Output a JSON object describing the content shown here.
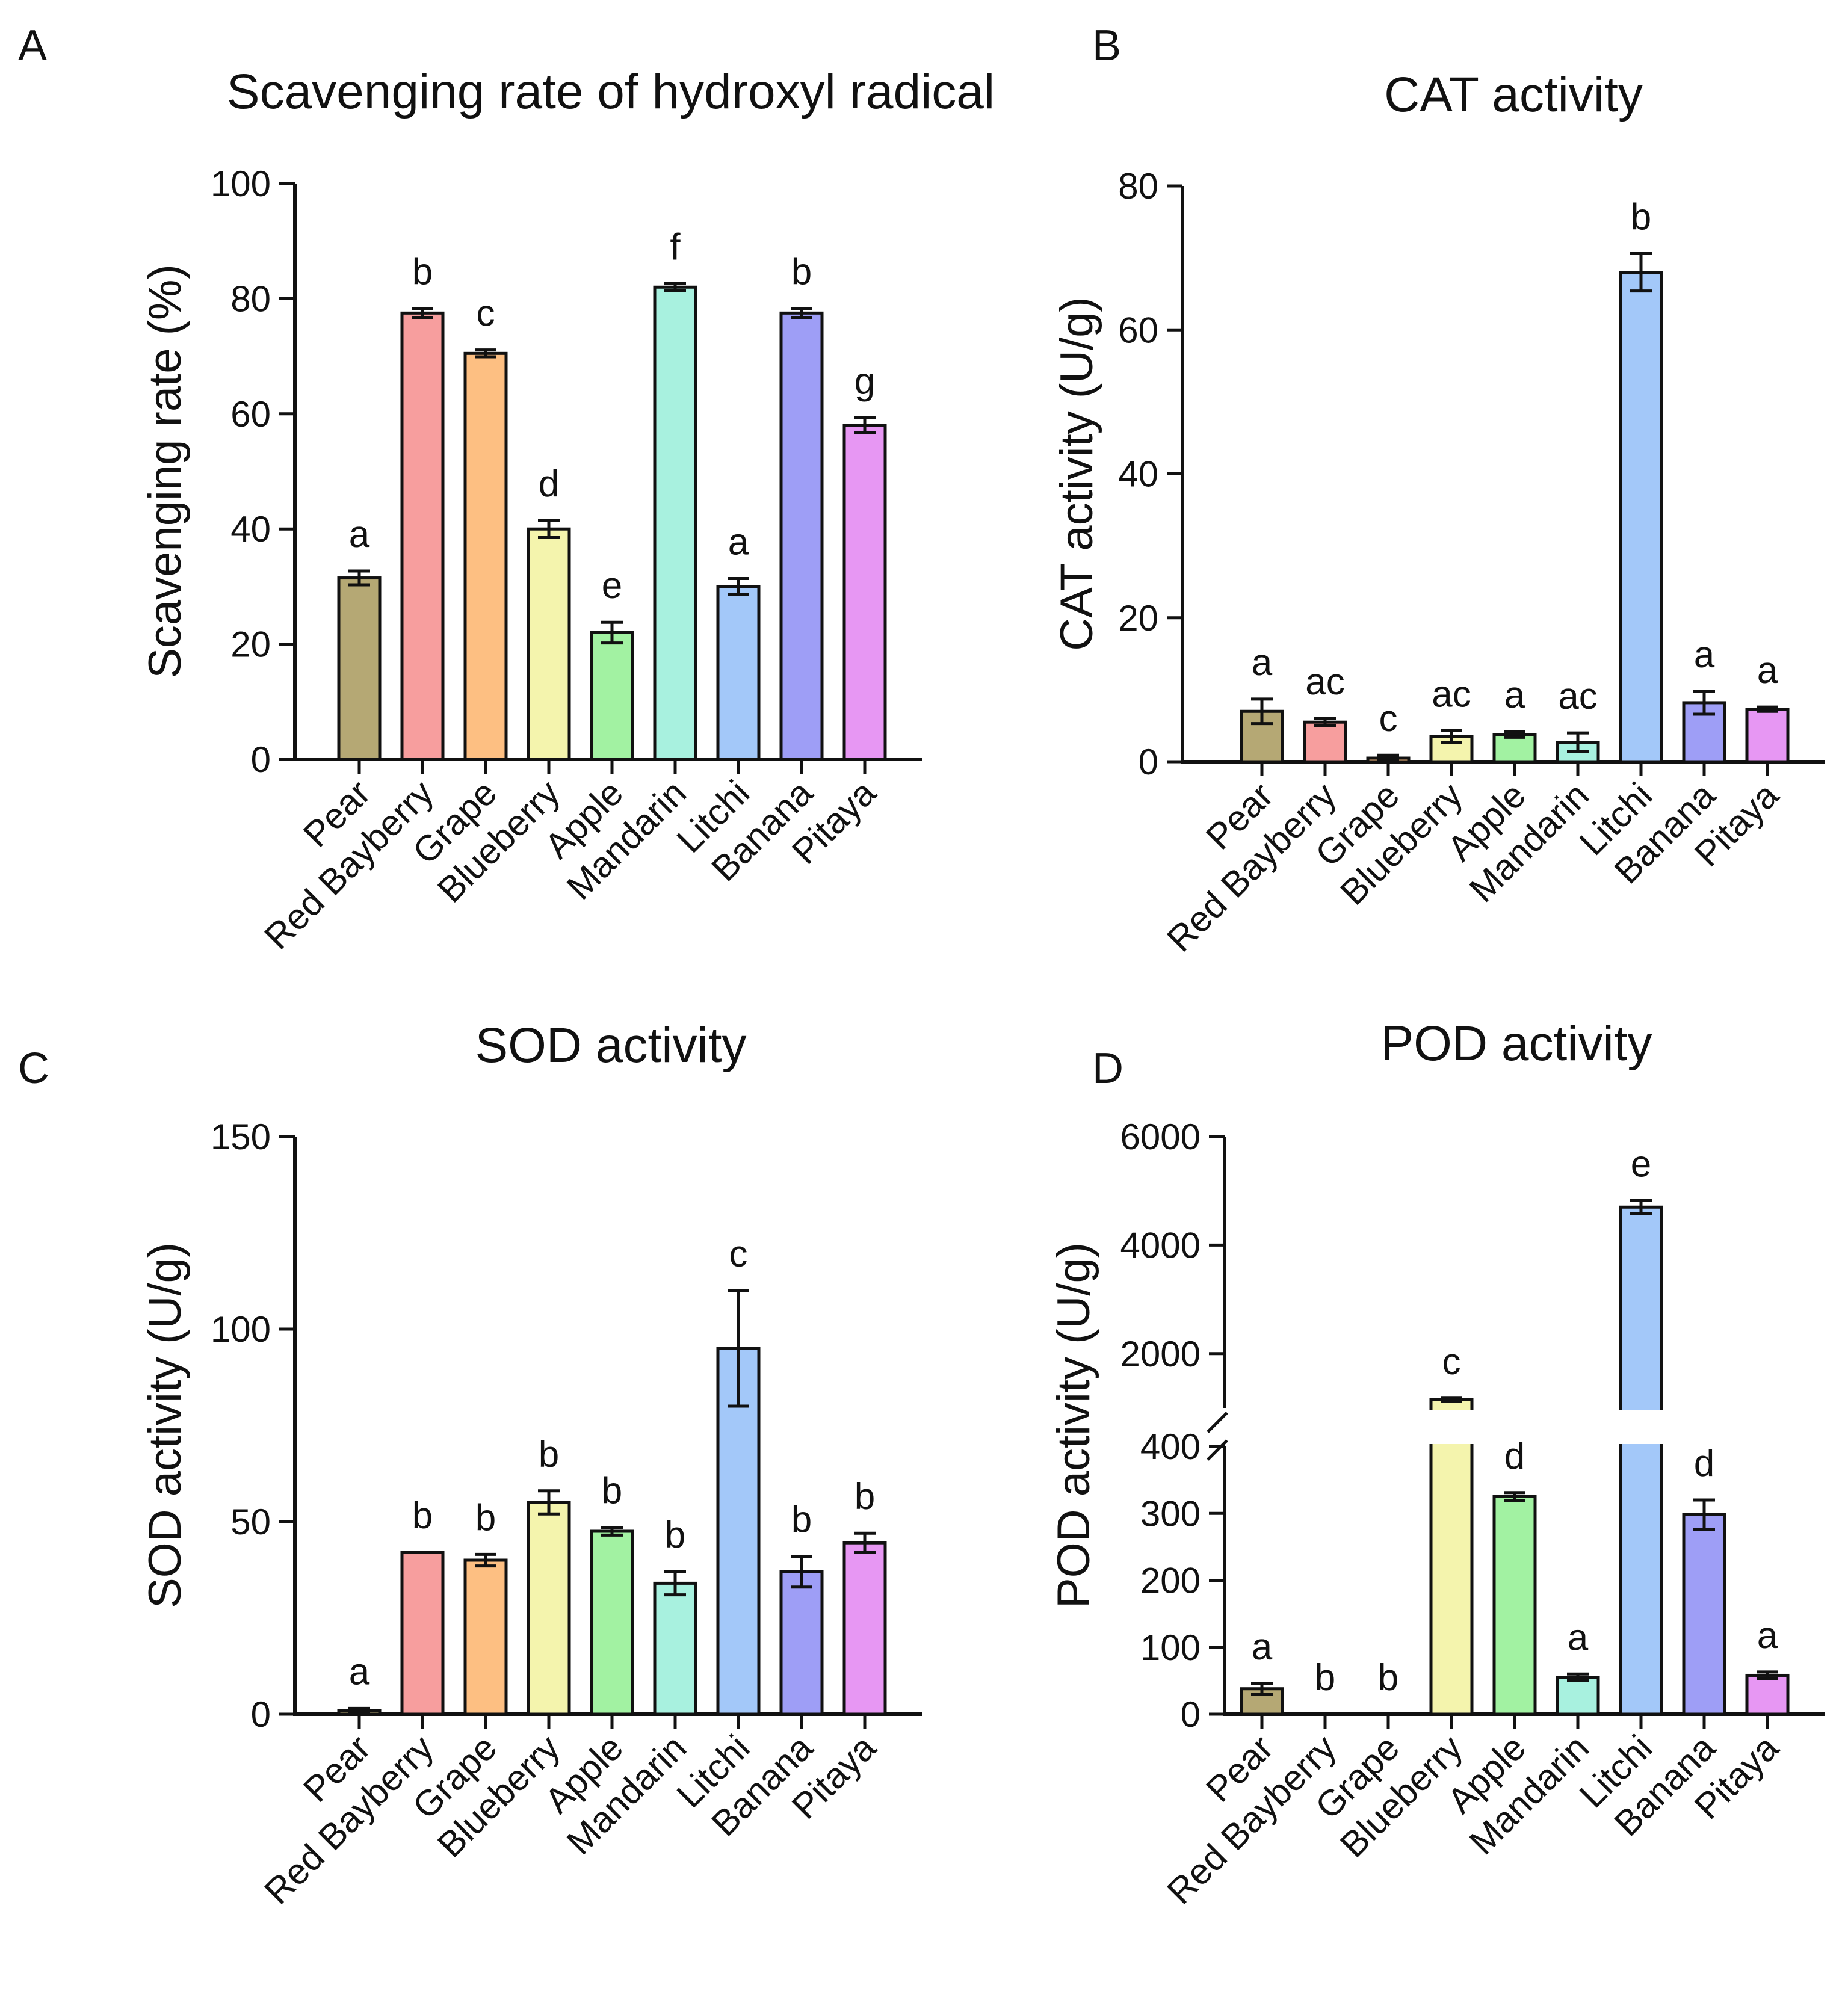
{
  "chart_data": [
    {
      "panel": "A",
      "type": "bar",
      "title": "Scavenging rate of hydroxyl radical",
      "ylabel": "Scavenging rate (%)",
      "ylim": [
        0,
        100
      ],
      "yticks": [
        0,
        20,
        40,
        60,
        80,
        100
      ],
      "categories": [
        "Pear",
        "Red Bayberry",
        "Grape",
        "Blueberry",
        "Apple",
        "Mandarin",
        "Litchi",
        "Banana",
        "Pitaya"
      ],
      "values": [
        31.5,
        77.5,
        70.5,
        40,
        22,
        82,
        30,
        77.5,
        58
      ],
      "errors": [
        1.2,
        0.8,
        0.6,
        1.5,
        1.8,
        0.6,
        1.4,
        0.8,
        1.3
      ],
      "significance": [
        "a",
        "b",
        "c",
        "d",
        "e",
        "f",
        "a",
        "b",
        "g"
      ]
    },
    {
      "panel": "B",
      "type": "bar",
      "title": "CAT activity",
      "ylabel": "CAT activity (U/g)",
      "ylim": [
        0,
        80
      ],
      "yticks": [
        0,
        20,
        40,
        60,
        80
      ],
      "categories": [
        "Pear",
        "Red Bayberry",
        "Grape",
        "Blueberry",
        "Apple",
        "Mandarin",
        "Litchi",
        "Banana",
        "Pitaya"
      ],
      "values": [
        7,
        5.5,
        0.5,
        3.5,
        3.8,
        2.7,
        68,
        8.2,
        7.3
      ],
      "errors": [
        1.7,
        0.5,
        0.4,
        0.8,
        0.4,
        1.3,
        2.6,
        1.6,
        0.3
      ],
      "significance": [
        "a",
        "ac",
        "c",
        "ac",
        "a",
        "ac",
        "b",
        "a",
        "a"
      ]
    },
    {
      "panel": "C",
      "type": "bar",
      "title": "SOD activity",
      "ylabel": "SOD activity (U/g)",
      "ylim": [
        0,
        150
      ],
      "yticks": [
        0,
        50,
        100,
        150
      ],
      "categories": [
        "Pear",
        "Red Bayberry",
        "Grape",
        "Blueberry",
        "Apple",
        "Mandarin",
        "Litchi",
        "Banana",
        "Pitaya"
      ],
      "values": [
        1,
        42,
        40,
        55,
        47.5,
        34,
        95,
        37,
        44.5
      ],
      "errors": [
        0.5,
        0,
        1.5,
        3,
        1,
        3,
        15,
        4,
        2.5
      ],
      "significance": [
        "a",
        "b",
        "b",
        "b",
        "b",
        "b",
        "c",
        "b",
        "b"
      ]
    },
    {
      "panel": "D",
      "type": "bar",
      "title": "POD activity",
      "ylabel": "POD activity (U/g)",
      "axis_break": true,
      "ylim_lower": [
        0,
        400
      ],
      "yticks_lower": [
        0,
        100,
        200,
        300,
        400
      ],
      "ylim_upper": [
        1000,
        6000
      ],
      "yticks_upper": [
        2000,
        4000,
        6000
      ],
      "categories": [
        "Pear",
        "Red Bayberry",
        "Grape",
        "Blueberry",
        "Apple",
        "Mandarin",
        "Litchi",
        "Banana",
        "Pitaya"
      ],
      "values": [
        38,
        0,
        0,
        1150,
        325,
        55,
        4700,
        298,
        58
      ],
      "errors": [
        8,
        0,
        0,
        30,
        6,
        5,
        120,
        22,
        5
      ],
      "significance": [
        "a",
        "b",
        "b",
        "c",
        "d",
        "a",
        "e",
        "d",
        "a"
      ]
    }
  ],
  "colors": [
    "#b5a874",
    "#f79e9e",
    "#fdbf82",
    "#f4f4ad",
    "#a2f2a2",
    "#a8f1df",
    "#a3c8f9",
    "#9e9ef6",
    "#e797f3"
  ]
}
